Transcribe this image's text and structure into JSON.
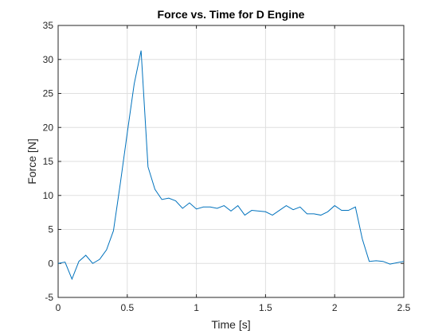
{
  "chart_data": {
    "type": "line",
    "title": "Force vs. Time for D Engine",
    "xlabel": "Time [s]",
    "ylabel": "Force [N]",
    "xlim": [
      0,
      2.5
    ],
    "ylim": [
      -5,
      35
    ],
    "xticks": [
      0,
      0.5,
      1,
      1.5,
      2,
      2.5
    ],
    "xtick_labels": [
      "0",
      "0.5",
      "1",
      "1.5",
      "2",
      "2.5"
    ],
    "yticks": [
      -5,
      0,
      5,
      10,
      15,
      20,
      25,
      30,
      35
    ],
    "ytick_labels": [
      "-5",
      "0",
      "5",
      "10",
      "15",
      "20",
      "25",
      "30",
      "35"
    ],
    "grid": true,
    "series": [
      {
        "color": "#0072bd",
        "x": [
          0,
          0.05,
          0.1,
          0.15,
          0.2,
          0.25,
          0.3,
          0.35,
          0.4,
          0.45,
          0.5,
          0.55,
          0.6,
          0.65,
          0.7,
          0.75,
          0.8,
          0.85,
          0.9,
          0.95,
          1.0,
          1.05,
          1.1,
          1.15,
          1.2,
          1.25,
          1.3,
          1.35,
          1.4,
          1.45,
          1.5,
          1.55,
          1.6,
          1.65,
          1.7,
          1.75,
          1.8,
          1.85,
          1.9,
          1.95,
          2.0,
          2.05,
          2.1,
          2.15,
          2.2,
          2.25,
          2.3,
          2.35,
          2.4,
          2.45,
          2.5
        ],
        "y": [
          0.0,
          0.2,
          -2.3,
          0.3,
          1.2,
          0.0,
          0.6,
          2.0,
          4.8,
          11.8,
          19.2,
          26.4,
          31.3,
          14.2,
          10.9,
          9.4,
          9.6,
          9.2,
          8.1,
          8.9,
          8.0,
          8.3,
          8.3,
          8.1,
          8.5,
          7.7,
          8.5,
          7.1,
          7.8,
          7.7,
          7.6,
          7.1,
          7.8,
          8.5,
          7.9,
          8.3,
          7.3,
          7.3,
          7.1,
          7.6,
          8.5,
          7.8,
          7.8,
          8.3,
          3.6,
          0.3,
          0.4,
          0.3,
          -0.1,
          0.1,
          0.3
        ]
      }
    ]
  }
}
